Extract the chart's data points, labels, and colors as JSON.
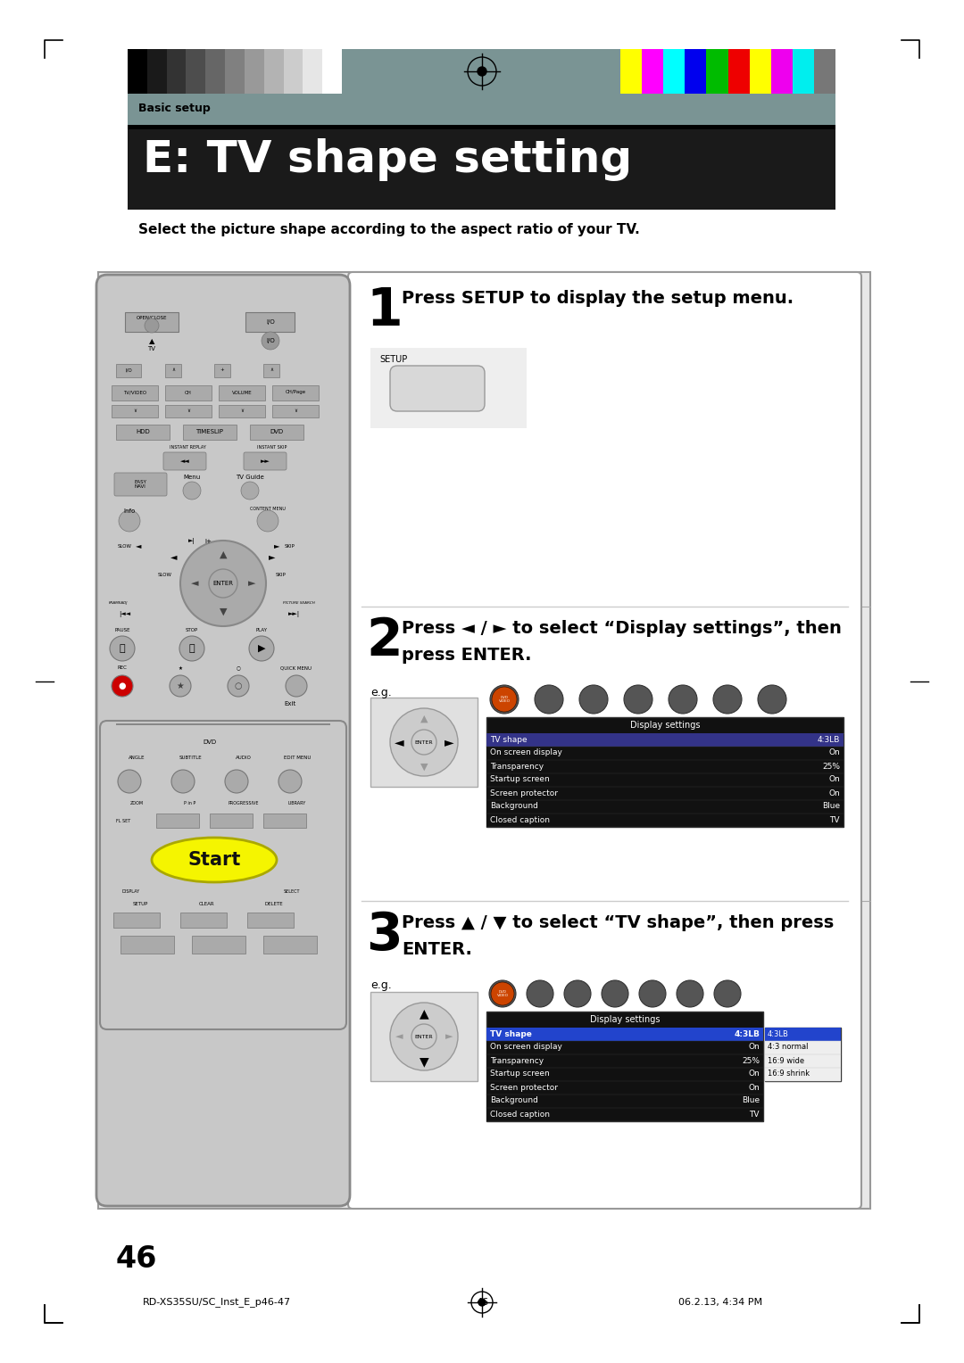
{
  "page_bg": "#ffffff",
  "header_bar_color": "#7a9494",
  "title_bg": "#1a1a1a",
  "title_text": "E: TV shape setting",
  "title_color": "#ffffff",
  "basic_setup_text": "Basic setup",
  "subtitle_text": "Select the picture shape according to the aspect ratio of your TV.",
  "step1_num": "1",
  "step1_text": "Press SETUP to display the setup menu.",
  "step2_num": "2",
  "step2_line1": "Press ◄ / ► to select “Display settings”, then",
  "step2_line2": "press ENTER.",
  "step3_num": "3",
  "step3_line1": "Press ▲ / ▼ to select “TV shape”, then press",
  "step3_line2": "ENTER.",
  "footer_left": "RD-XS35SU/SC_Inst_E_p46-47",
  "footer_center": "46",
  "footer_date": "06.2.13, 4:34 PM",
  "grayscale_colors": [
    "#000000",
    "#1a1a1a",
    "#333333",
    "#4d4d4d",
    "#666666",
    "#808080",
    "#999999",
    "#b3b3b3",
    "#cccccc",
    "#e6e6e6",
    "#ffffff"
  ],
  "color_bars": [
    "#ffff00",
    "#ff00ff",
    "#00ffff",
    "#0000ee",
    "#00bb00",
    "#ee0000",
    "#ffff00",
    "#ee00ee",
    "#00eeee",
    "#777777"
  ],
  "display_settings_rows": [
    [
      "TV shape",
      "4:3LB"
    ],
    [
      "On screen display",
      "On"
    ],
    [
      "Transparency",
      "25%"
    ],
    [
      "Startup screen",
      "On"
    ],
    [
      "Screen protector",
      "On"
    ],
    [
      "Background",
      "Blue"
    ],
    [
      "Closed caption",
      "TV"
    ]
  ],
  "tv_shape_options": [
    "4:3LB",
    "4:3 normal",
    "16:9 wide",
    "16:9 shrink"
  ],
  "eg_label": "e.g.",
  "page_num": "46"
}
